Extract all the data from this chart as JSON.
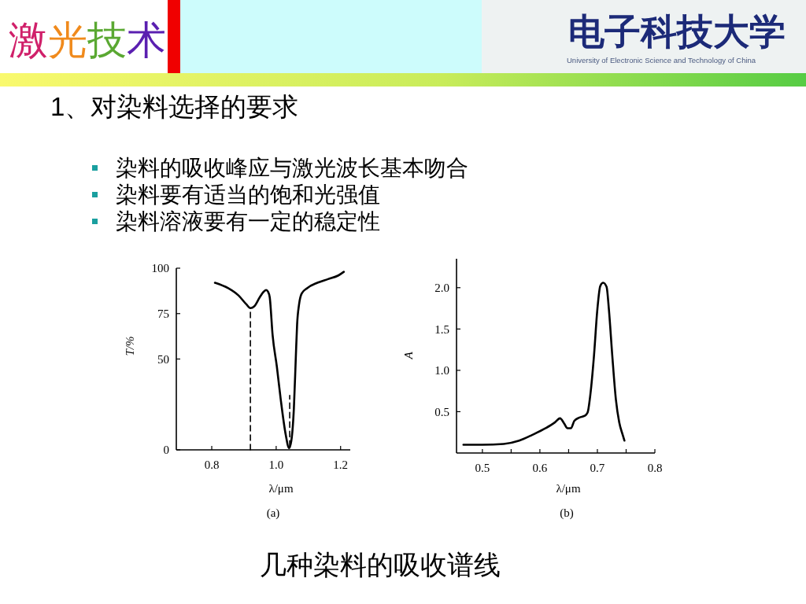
{
  "chart_data": [
    {
      "type": "other",
      "title": "激光技术",
      "subtitle": "电子科技大学",
      "annotations": [
        "University of Electronic Science and Technology of China"
      ]
    },
    {
      "type": "other",
      "title": "1、对染料选择的要求",
      "annotations": [
        "染料的吸收峰应与激光波长基本吻合",
        "染料要有适当的饱和光强值",
        "染料溶液要有一定的稳定性"
      ]
    },
    {
      "type": "line",
      "xlabel": "λ/μm",
      "ylabel": "T/%",
      "annotations": [
        "(a)"
      ],
      "xlim": [
        0.69,
        1.23
      ],
      "xticks": [
        0.8,
        {
          "value": 1,
          "label": "1.0"
        },
        1.2
      ],
      "ylim": [
        0,
        100
      ],
      "yticks": [
        0,
        50,
        75,
        100
      ],
      "line_style": "solid",
      "series": [
        {
          "color": "#000000",
          "x": [
            0.81,
            0.851,
            0.883,
            0.908,
            0.92,
            0.932,
            0.949,
            0.961,
            0.969,
            0.975,
            0.98,
            0.989,
            1.002,
            1.014,
            1.03,
            1.04,
            1.047,
            1.055,
            1.061,
            1.065,
            1.071,
            1.079,
            1.096,
            1.128,
            1.161,
            1.193,
            1.21
          ],
          "values": [
            92,
            89,
            85,
            80,
            78,
            79,
            84,
            87,
            88,
            87,
            84,
            63,
            46,
            28,
            8,
            1,
            5,
            23,
            51,
            69,
            80,
            86,
            89,
            92,
            94,
            96,
            98
          ]
        },
        {
          "color": "#000000",
          "line_style": "dashed",
          "x": [
            0.92,
            0.92
          ],
          "values": [
            0,
            78
          ]
        },
        {
          "color": "#000000",
          "line_style": "dashed",
          "x": [
            1.042,
            1.042
          ],
          "values": [
            2,
            30
          ]
        }
      ]
    },
    {
      "type": "line",
      "xlabel": "λ/μm",
      "ylabel": "A",
      "annotations": [
        "(b)"
      ],
      "xlim": [
        0.455,
        0.8
      ],
      "xticks": [
        0.5,
        {
          "value": 0.55,
          "label": null
        },
        0.6,
        {
          "value": 0.65,
          "label": null
        },
        0.7,
        {
          "value": 0.75,
          "label": null
        },
        0.8
      ],
      "ylim": [
        0,
        2.35
      ],
      "yticks": [
        0.5,
        {
          "value": 1,
          "label": "1.0"
        },
        1.5,
        {
          "value": 2,
          "label": "2.0"
        }
      ],
      "line_style": "solid",
      "series": [
        {
          "color": "#000000",
          "x": [
            0.467,
            0.5,
            0.537,
            0.564,
            0.587,
            0.61,
            0.626,
            0.635,
            0.642,
            0.648,
            0.654,
            0.66,
            0.669,
            0.678,
            0.683,
            0.688,
            0.694,
            0.7,
            0.705,
            0.71,
            0.716,
            0.72,
            0.726,
            0.732,
            0.738,
            0.744,
            0.747
          ],
          "values": [
            0.1,
            0.1,
            0.11,
            0.15,
            0.22,
            0.3,
            0.37,
            0.42,
            0.36,
            0.3,
            0.3,
            0.39,
            0.43,
            0.45,
            0.49,
            0.72,
            1.17,
            1.74,
            2.02,
            2.06,
            2.01,
            1.74,
            1.17,
            0.66,
            0.37,
            0.22,
            0.15
          ]
        }
      ]
    },
    {
      "type": "other",
      "title": "几种染料的吸收谱线"
    }
  ]
}
